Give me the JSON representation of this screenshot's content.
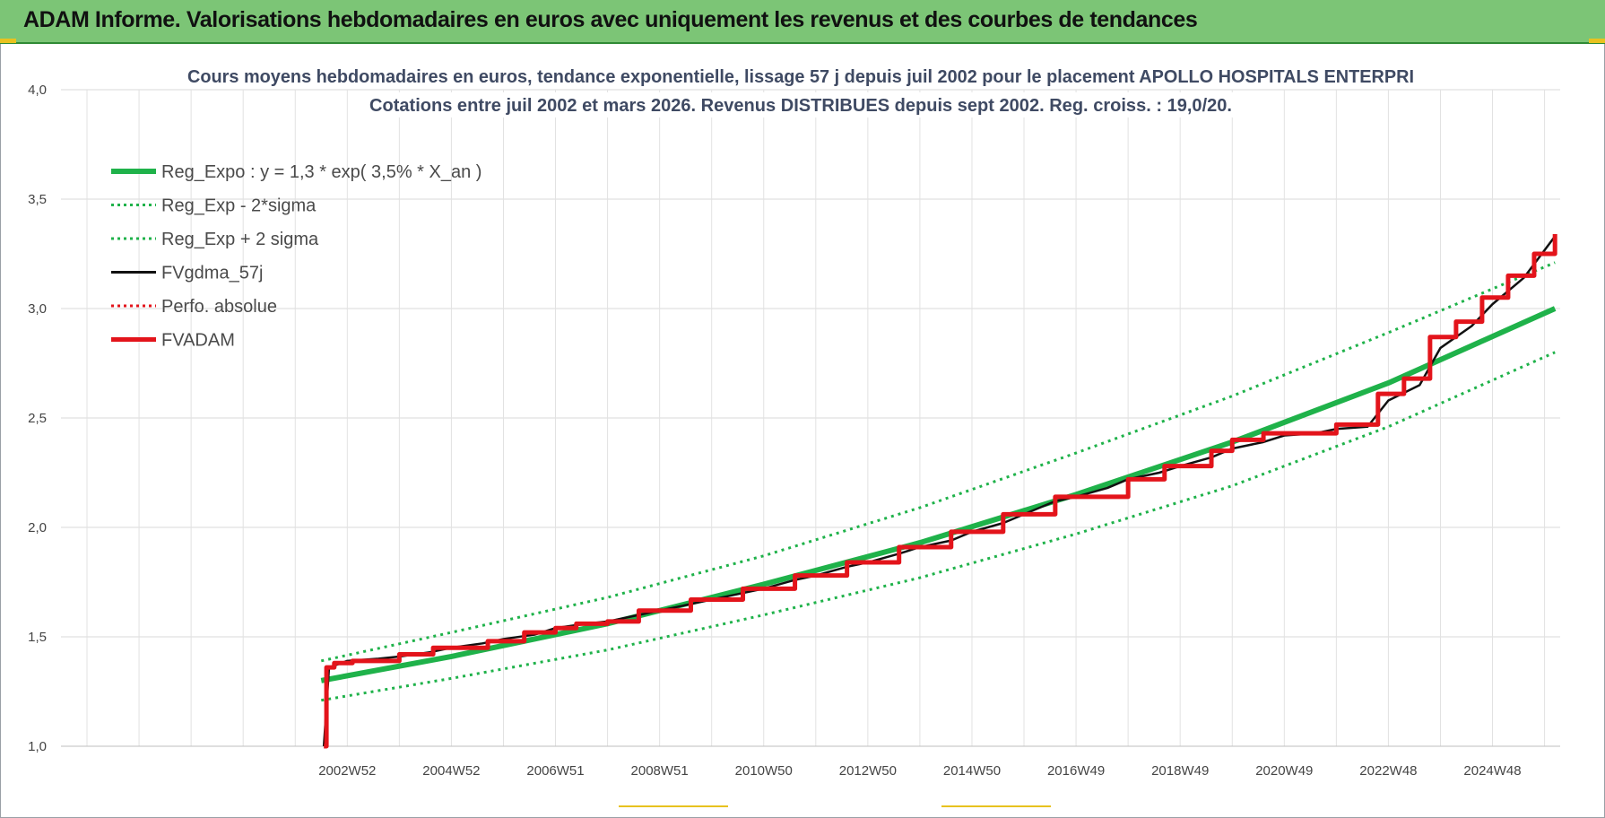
{
  "banner": {
    "title": "ADAM Informe. Valorisations hebdomadaires en euros avec uniquement les revenus et des courbes de tendances"
  },
  "colors": {
    "banner_bg": "#7cc576",
    "reg_green": "#1fb24a",
    "fadam_red": "#e3141b",
    "fv_black": "#111111",
    "grid": "#d9d9d9",
    "title_text": "#3f4a63",
    "corner_accent": "#e8c21f"
  },
  "chart_data": {
    "type": "line",
    "title": "Cours moyens hebdomadaires en euros, tendance exponentielle, lissage 57 j depuis juil 2002 pour le placement APOLLO HOSPITALS ENTERPRI",
    "subtitle": "Cotations entre juil 2002 et mars 2026. Revenus DISTRIBUES depuis sept 2002. Reg. croiss. : 19,0/20.",
    "xlabel": "",
    "ylabel": "",
    "x_range": [
      1997.5,
      2026.3
    ],
    "ylim": [
      1.0,
      4.0
    ],
    "y_ticks": [
      "1,0",
      "1,5",
      "2,0",
      "2,5",
      "3,0",
      "3,5",
      "4,0"
    ],
    "y_tick_values": [
      1.0,
      1.5,
      2.0,
      2.5,
      3.0,
      3.5,
      4.0
    ],
    "x_ticks": [
      {
        "label": "2002W52",
        "x": 2003.0
      },
      {
        "label": "2004W52",
        "x": 2005.0
      },
      {
        "label": "2006W51",
        "x": 2007.0
      },
      {
        "label": "2008W51",
        "x": 2009.0
      },
      {
        "label": "2010W50",
        "x": 2011.0
      },
      {
        "label": "2012W50",
        "x": 2013.0
      },
      {
        "label": "2014W50",
        "x": 2015.0
      },
      {
        "label": "2016W49",
        "x": 2017.0
      },
      {
        "label": "2018W49",
        "x": 2019.0
      },
      {
        "label": "2020W49",
        "x": 2021.0
      },
      {
        "label": "2022W48",
        "x": 2023.0
      },
      {
        "label": "2024W48",
        "x": 2025.0
      }
    ],
    "grid": true,
    "legend_position": "top-left",
    "series": [
      {
        "name": "Reg_Expo : y = 1,3 * exp( 3,5% *  X_an )",
        "style": "solid-thick",
        "color": "#1fb24a",
        "x": [
          2002.5,
          2005,
          2008,
          2011,
          2014,
          2017,
          2020,
          2023,
          2026.2
        ],
        "values": [
          1.3,
          1.41,
          1.56,
          1.74,
          1.93,
          2.15,
          2.39,
          2.66,
          3.0
        ]
      },
      {
        "name": "Reg_Exp - 2*sigma",
        "style": "dotted",
        "color": "#1fb24a",
        "x": [
          2002.5,
          2005,
          2008,
          2011,
          2014,
          2017,
          2020,
          2023,
          2026.2
        ],
        "values": [
          1.21,
          1.31,
          1.44,
          1.6,
          1.77,
          1.97,
          2.19,
          2.46,
          2.8
        ]
      },
      {
        "name": "Reg_Exp + 2 sigma",
        "style": "dotted",
        "color": "#1fb24a",
        "x": [
          2002.5,
          2005,
          2008,
          2011,
          2014,
          2017,
          2020,
          2023,
          2026.2
        ],
        "values": [
          1.39,
          1.52,
          1.68,
          1.87,
          2.09,
          2.34,
          2.6,
          2.89,
          3.21
        ]
      },
      {
        "name": "FVgdma_57j",
        "style": "solid",
        "color": "#111111",
        "x": [
          2002.55,
          2002.65,
          2003.0,
          2003.6,
          2004.0,
          2004.6,
          2005.0,
          2005.6,
          2006.0,
          2006.6,
          2007.0,
          2007.6,
          2008.0,
          2008.6,
          2009.0,
          2009.6,
          2010.0,
          2010.6,
          2011.0,
          2011.6,
          2012.0,
          2012.6,
          2013.0,
          2013.6,
          2014.0,
          2014.6,
          2015.0,
          2015.6,
          2016.0,
          2016.6,
          2017.0,
          2017.6,
          2018.0,
          2018.6,
          2019.0,
          2019.6,
          2020.0,
          2020.6,
          2021.0,
          2021.6,
          2022.0,
          2022.6,
          2023.0,
          2023.6,
          2024.0,
          2024.6,
          2025.0,
          2025.6,
          2026.2
        ],
        "values": [
          1.0,
          1.36,
          1.39,
          1.4,
          1.41,
          1.43,
          1.45,
          1.47,
          1.49,
          1.51,
          1.54,
          1.56,
          1.57,
          1.6,
          1.62,
          1.65,
          1.67,
          1.7,
          1.72,
          1.76,
          1.78,
          1.82,
          1.84,
          1.88,
          1.91,
          1.94,
          1.98,
          2.02,
          2.06,
          2.12,
          2.14,
          2.18,
          2.22,
          2.25,
          2.28,
          2.32,
          2.36,
          2.39,
          2.42,
          2.43,
          2.45,
          2.46,
          2.58,
          2.65,
          2.82,
          2.92,
          3.02,
          3.14,
          3.33
        ]
      },
      {
        "name": "Perfo. absolue",
        "style": "dotted",
        "color": "#e3141b",
        "x": [],
        "values": []
      },
      {
        "name": "FVADAM",
        "style": "step-thick",
        "color": "#e3141b",
        "x": [
          2002.55,
          2002.6,
          2002.75,
          2003.1,
          2004.0,
          2004.65,
          2005.7,
          2006.4,
          2007.0,
          2007.4,
          2008.0,
          2008.6,
          2009.6,
          2010.6,
          2011.6,
          2012.6,
          2013.6,
          2014.6,
          2015.6,
          2016.6,
          2017.3,
          2018.0,
          2018.7,
          2019.6,
          2020.0,
          2020.6,
          2021.4,
          2022.0,
          2022.8,
          2023.3,
          2023.8,
          2024.3,
          2024.8,
          2025.3,
          2025.8,
          2026.2
        ],
        "values": [
          1.0,
          1.36,
          1.38,
          1.39,
          1.42,
          1.45,
          1.48,
          1.52,
          1.54,
          1.56,
          1.57,
          1.62,
          1.67,
          1.72,
          1.78,
          1.84,
          1.91,
          1.98,
          2.06,
          2.14,
          2.14,
          2.22,
          2.28,
          2.35,
          2.4,
          2.43,
          2.43,
          2.47,
          2.61,
          2.68,
          2.87,
          2.94,
          3.05,
          3.15,
          3.25,
          3.34
        ]
      }
    ]
  }
}
